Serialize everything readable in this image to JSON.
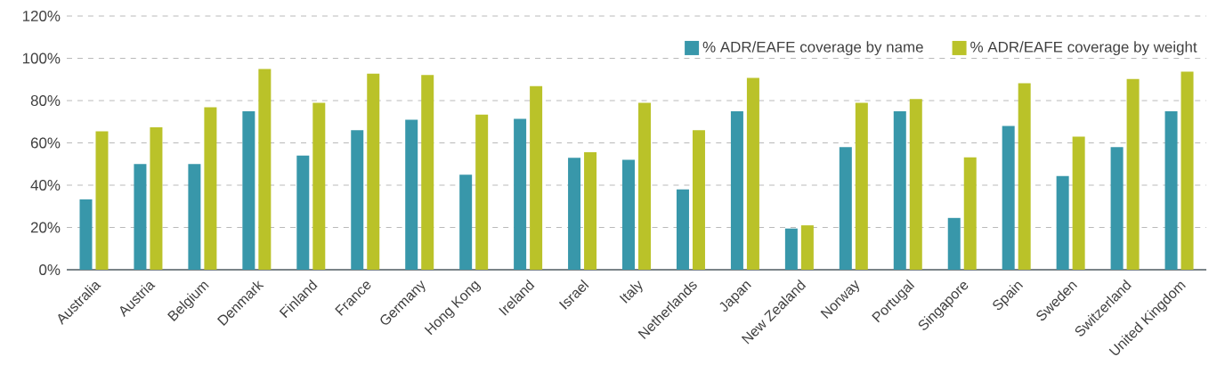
{
  "chart_data": {
    "type": "bar",
    "categories": [
      "Australia",
      "Austria",
      "Belgium",
      "Denmark",
      "Finland",
      "France",
      "Germany",
      "Hong Kong",
      "Ireland",
      "Israel",
      "Italy",
      "Netherlands",
      "Japan",
      "New Zealand",
      "Norway",
      "Portugal",
      "Singapore",
      "Spain",
      "Sweden",
      "Switzerland",
      "United Kingdom"
    ],
    "series": [
      {
        "name": "% ADR/EAFE coverage by name",
        "color": "#3897aa",
        "values": [
          33.3,
          50,
          50,
          75,
          54,
          66,
          71,
          45,
          71.4,
          53,
          52,
          38,
          75,
          19.5,
          58,
          75,
          24.5,
          68,
          44.3,
          58,
          75
        ]
      },
      {
        "name": "% ADR/EAFE coverage by weight",
        "color": "#bac229",
        "values": [
          65.5,
          67.4,
          76.8,
          95,
          79,
          92.7,
          92.1,
          73.4,
          86.8,
          55.6,
          79,
          66,
          90.7,
          21,
          79,
          80.7,
          53.2,
          88.2,
          63,
          90.2,
          93.7
        ]
      }
    ],
    "ylim": [
      0,
      120
    ],
    "yticks": [
      {
        "value": 0,
        "label": "0%"
      },
      {
        "value": 20,
        "label": "20%"
      },
      {
        "value": 40,
        "label": "40%"
      },
      {
        "value": 60,
        "label": "60%"
      },
      {
        "value": 80,
        "label": "80%"
      },
      {
        "value": 100,
        "label": "100%"
      },
      {
        "value": 120,
        "label": "120%"
      }
    ],
    "grid": "y",
    "legend": "top right"
  }
}
